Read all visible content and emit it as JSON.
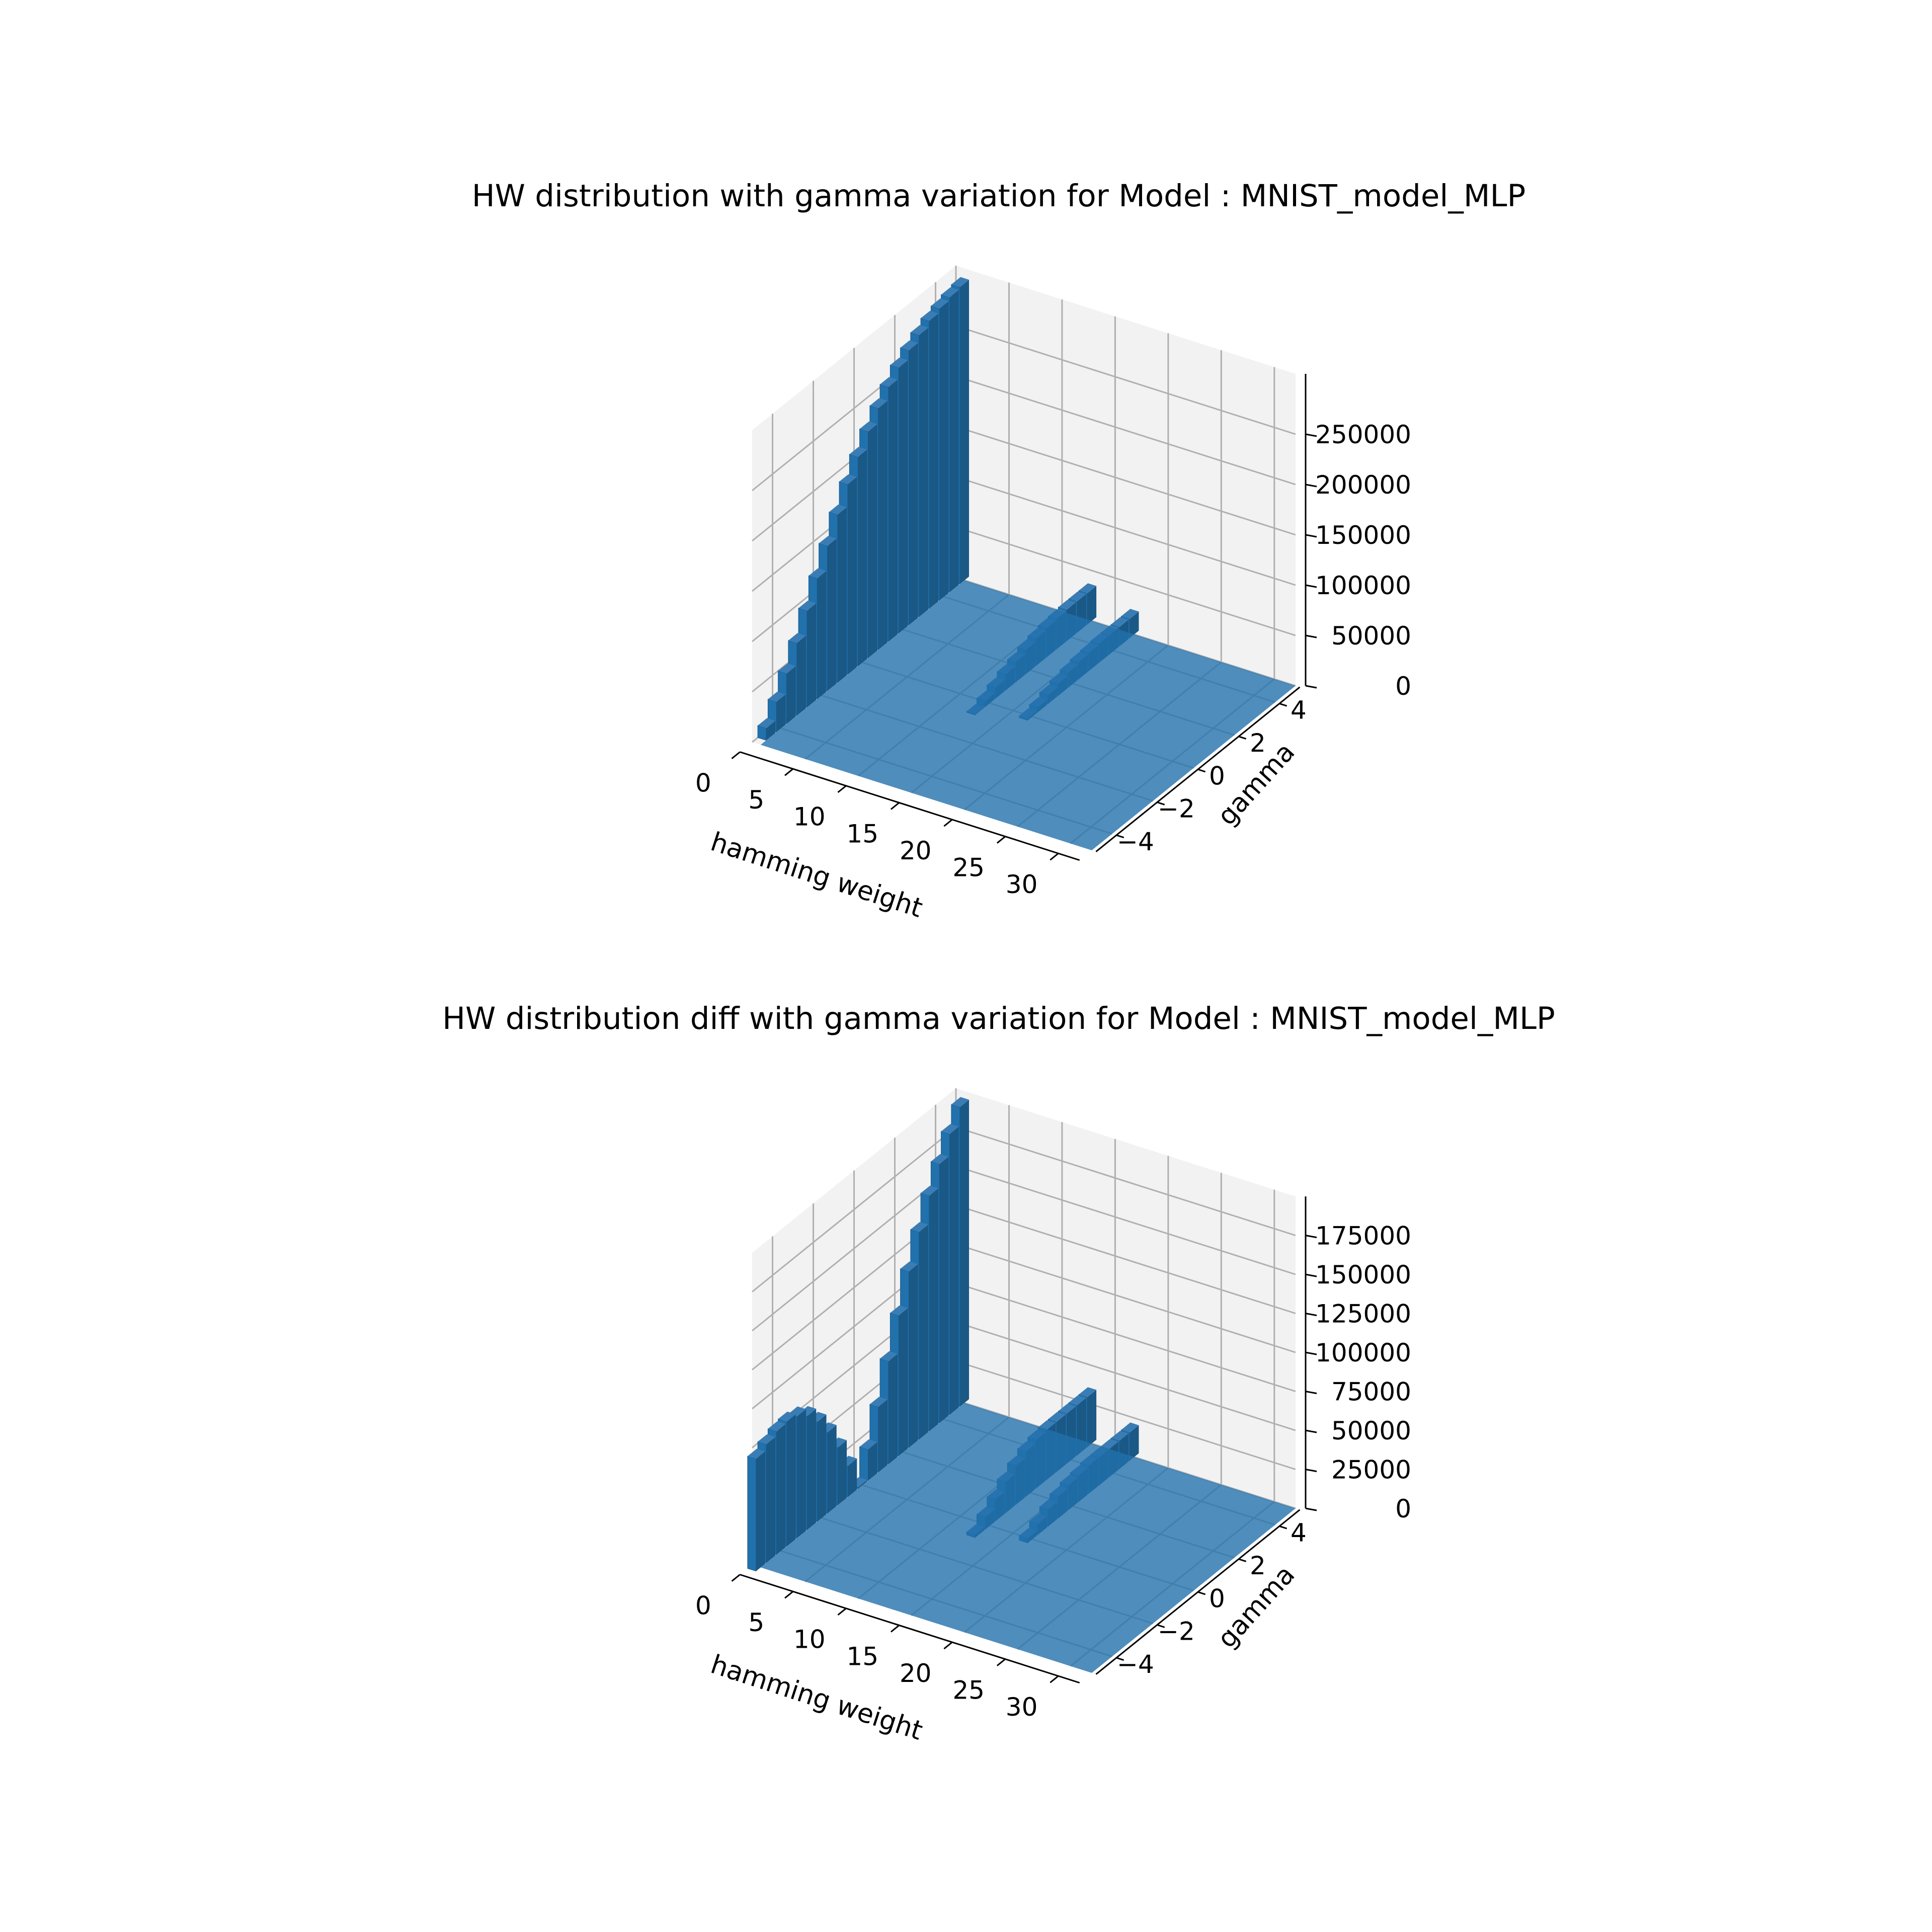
{
  "colors": {
    "bar_front": "#2171ad",
    "bar_side": "#1a5886",
    "bar_top": "#3a7db5",
    "pane": "#f2f2f2",
    "grid": "#b0b0b0"
  },
  "chart_data": [
    {
      "type": "3d-bar",
      "title": "HW distribution with gamma variation for Model : MNIST_model_MLP",
      "xlabel": "hamming weight",
      "ylabel": "gamma",
      "zlabel": "",
      "xlim": [
        0,
        32
      ],
      "ylim": [
        -5,
        5
      ],
      "zlim": [
        0,
        310000
      ],
      "xticks": [
        "0",
        "5",
        "10",
        "15",
        "20",
        "25",
        "30"
      ],
      "yticks": [
        "−4",
        "−2",
        "0",
        "2",
        "4"
      ],
      "zticks": [
        "0",
        "50000",
        "100000",
        "150000",
        "200000",
        "250000"
      ],
      "gamma_values": [
        -5.0,
        -4.5,
        -4.0,
        -3.5,
        -3.0,
        -2.5,
        -2.0,
        -1.5,
        -1.0,
        -0.5,
        0.0,
        0.5,
        1.0,
        1.5,
        2.0,
        2.5,
        3.0,
        3.5,
        4.0,
        4.5,
        5.0
      ],
      "series": [
        {
          "hamming_weight": 0,
          "values": [
            0,
            12000,
            30000,
            50000,
            72000,
            96000,
            120000,
            144000,
            167000,
            189000,
            208000,
            225000,
            240000,
            253000,
            264000,
            273000,
            280000,
            286000,
            290000,
            293000,
            295000
          ]
        },
        {
          "hamming_weight": 12,
          "values": [
            0,
            0,
            0,
            0,
            0,
            0,
            0,
            0,
            0,
            1000,
            6000,
            11000,
            16000,
            20000,
            24000,
            27000,
            29000,
            30000,
            31000,
            31000,
            31000
          ]
        },
        {
          "hamming_weight": 16,
          "values": [
            0,
            0,
            0,
            0,
            0,
            0,
            0,
            0,
            0,
            0,
            2000,
            5000,
            9000,
            12000,
            15000,
            17000,
            18000,
            19000,
            19000,
            19000,
            19000
          ]
        }
      ]
    },
    {
      "type": "3d-bar",
      "title": "HW distribution diff with gamma variation for Model : MNIST_model_MLP",
      "xlabel": "hamming weight",
      "ylabel": "gamma",
      "zlabel": "",
      "xlim": [
        0,
        32
      ],
      "ylim": [
        -5,
        5
      ],
      "zlim": [
        0,
        200000
      ],
      "xticks": [
        "0",
        "5",
        "10",
        "15",
        "20",
        "25",
        "30"
      ],
      "yticks": [
        "−4",
        "−2",
        "0",
        "2",
        "4"
      ],
      "zticks": [
        "0",
        "25000",
        "50000",
        "75000",
        "100000",
        "125000",
        "150000",
        "175000"
      ],
      "gamma_values": [
        -5.0,
        -4.5,
        -4.0,
        -3.5,
        -3.0,
        -2.5,
        -2.0,
        -1.5,
        -1.0,
        -0.5,
        0.0,
        0.5,
        1.0,
        1.5,
        2.0,
        2.5,
        3.0,
        3.5,
        4.0,
        4.5,
        5.0
      ],
      "series": [
        {
          "hamming_weight": 0,
          "values": [
            72000,
            76000,
            79000,
            80000,
            78000,
            73000,
            64000,
            52000,
            37000,
            20000,
            1000,
            20000,
            42000,
            66000,
            90000,
            113000,
            133000,
            151000,
            166000,
            180000,
            192000
          ]
        },
        {
          "hamming_weight": 12,
          "values": [
            0,
            0,
            0,
            0,
            0,
            0,
            0,
            0,
            0,
            2000,
            8000,
            14000,
            20000,
            25000,
            29000,
            31000,
            32000,
            32000,
            32000,
            32000,
            32000
          ]
        },
        {
          "hamming_weight": 16,
          "values": [
            0,
            0,
            0,
            0,
            0,
            0,
            0,
            0,
            0,
            0,
            3000,
            7000,
            11000,
            14000,
            16000,
            17000,
            18000,
            18000,
            18000,
            18000,
            18000
          ]
        }
      ]
    }
  ]
}
